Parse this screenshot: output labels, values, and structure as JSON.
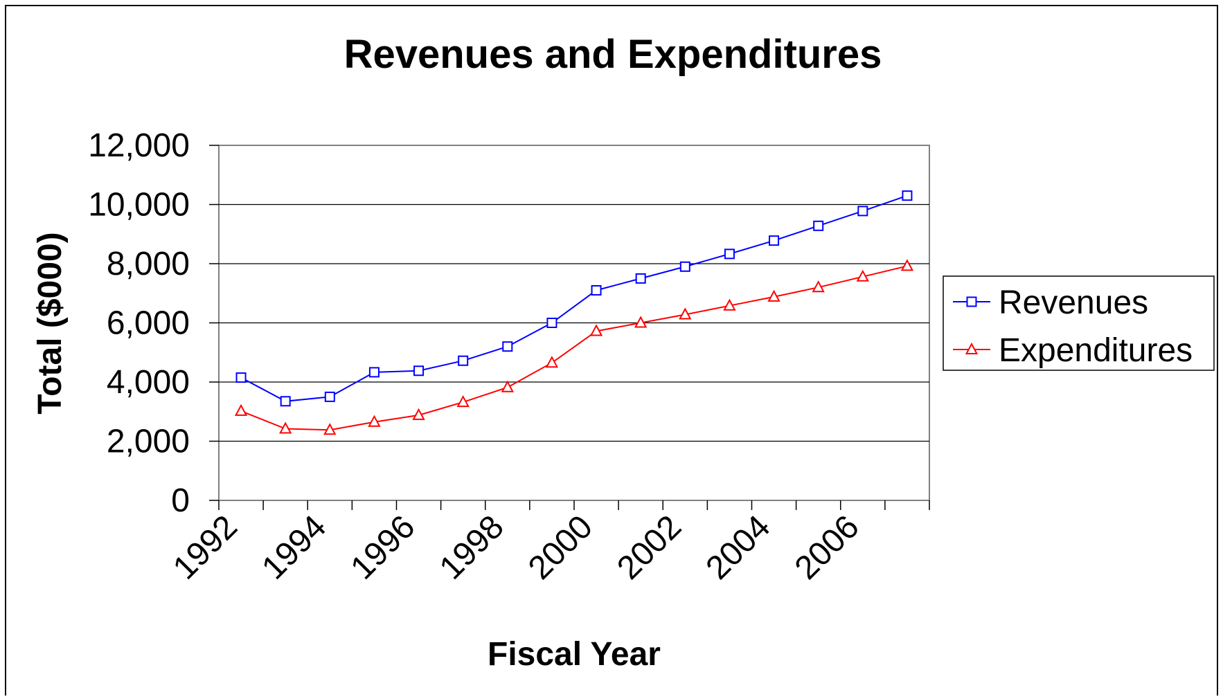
{
  "chart_data": {
    "type": "line",
    "title": "Revenues and Expenditures",
    "xlabel": "Fiscal Year",
    "ylabel": "Total ($000)",
    "x": [
      1992,
      1993,
      1994,
      1995,
      1996,
      1997,
      1998,
      1999,
      2000,
      2001,
      2002,
      2003,
      2004,
      2005,
      2006,
      2007
    ],
    "x_tick_labels": [
      "1992",
      "1994",
      "1996",
      "1998",
      "2000",
      "2002",
      "2004",
      "2006"
    ],
    "x_tick_values": [
      1992,
      1994,
      1996,
      1998,
      2000,
      2002,
      2004,
      2006
    ],
    "y_tick_labels": [
      "0",
      "2,000",
      "4,000",
      "6,000",
      "8,000",
      "10,000",
      "12,000"
    ],
    "y_tick_values": [
      0,
      2000,
      4000,
      6000,
      8000,
      10000,
      12000
    ],
    "ylim": [
      0,
      12000
    ],
    "grid": "horizontal",
    "legend_position": "right",
    "series": [
      {
        "name": "Revenues",
        "color": "#0000ff",
        "marker": "square",
        "values": [
          4150,
          3350,
          3500,
          4330,
          4380,
          4720,
          5200,
          6000,
          7100,
          7500,
          7900,
          8330,
          8780,
          9280,
          9780,
          10300
        ]
      },
      {
        "name": "Expenditures",
        "color": "#ff0000",
        "marker": "triangle",
        "values": [
          3020,
          2420,
          2380,
          2650,
          2880,
          3320,
          3820,
          4650,
          5720,
          6000,
          6280,
          6580,
          6880,
          7200,
          7560,
          7920
        ]
      }
    ]
  }
}
